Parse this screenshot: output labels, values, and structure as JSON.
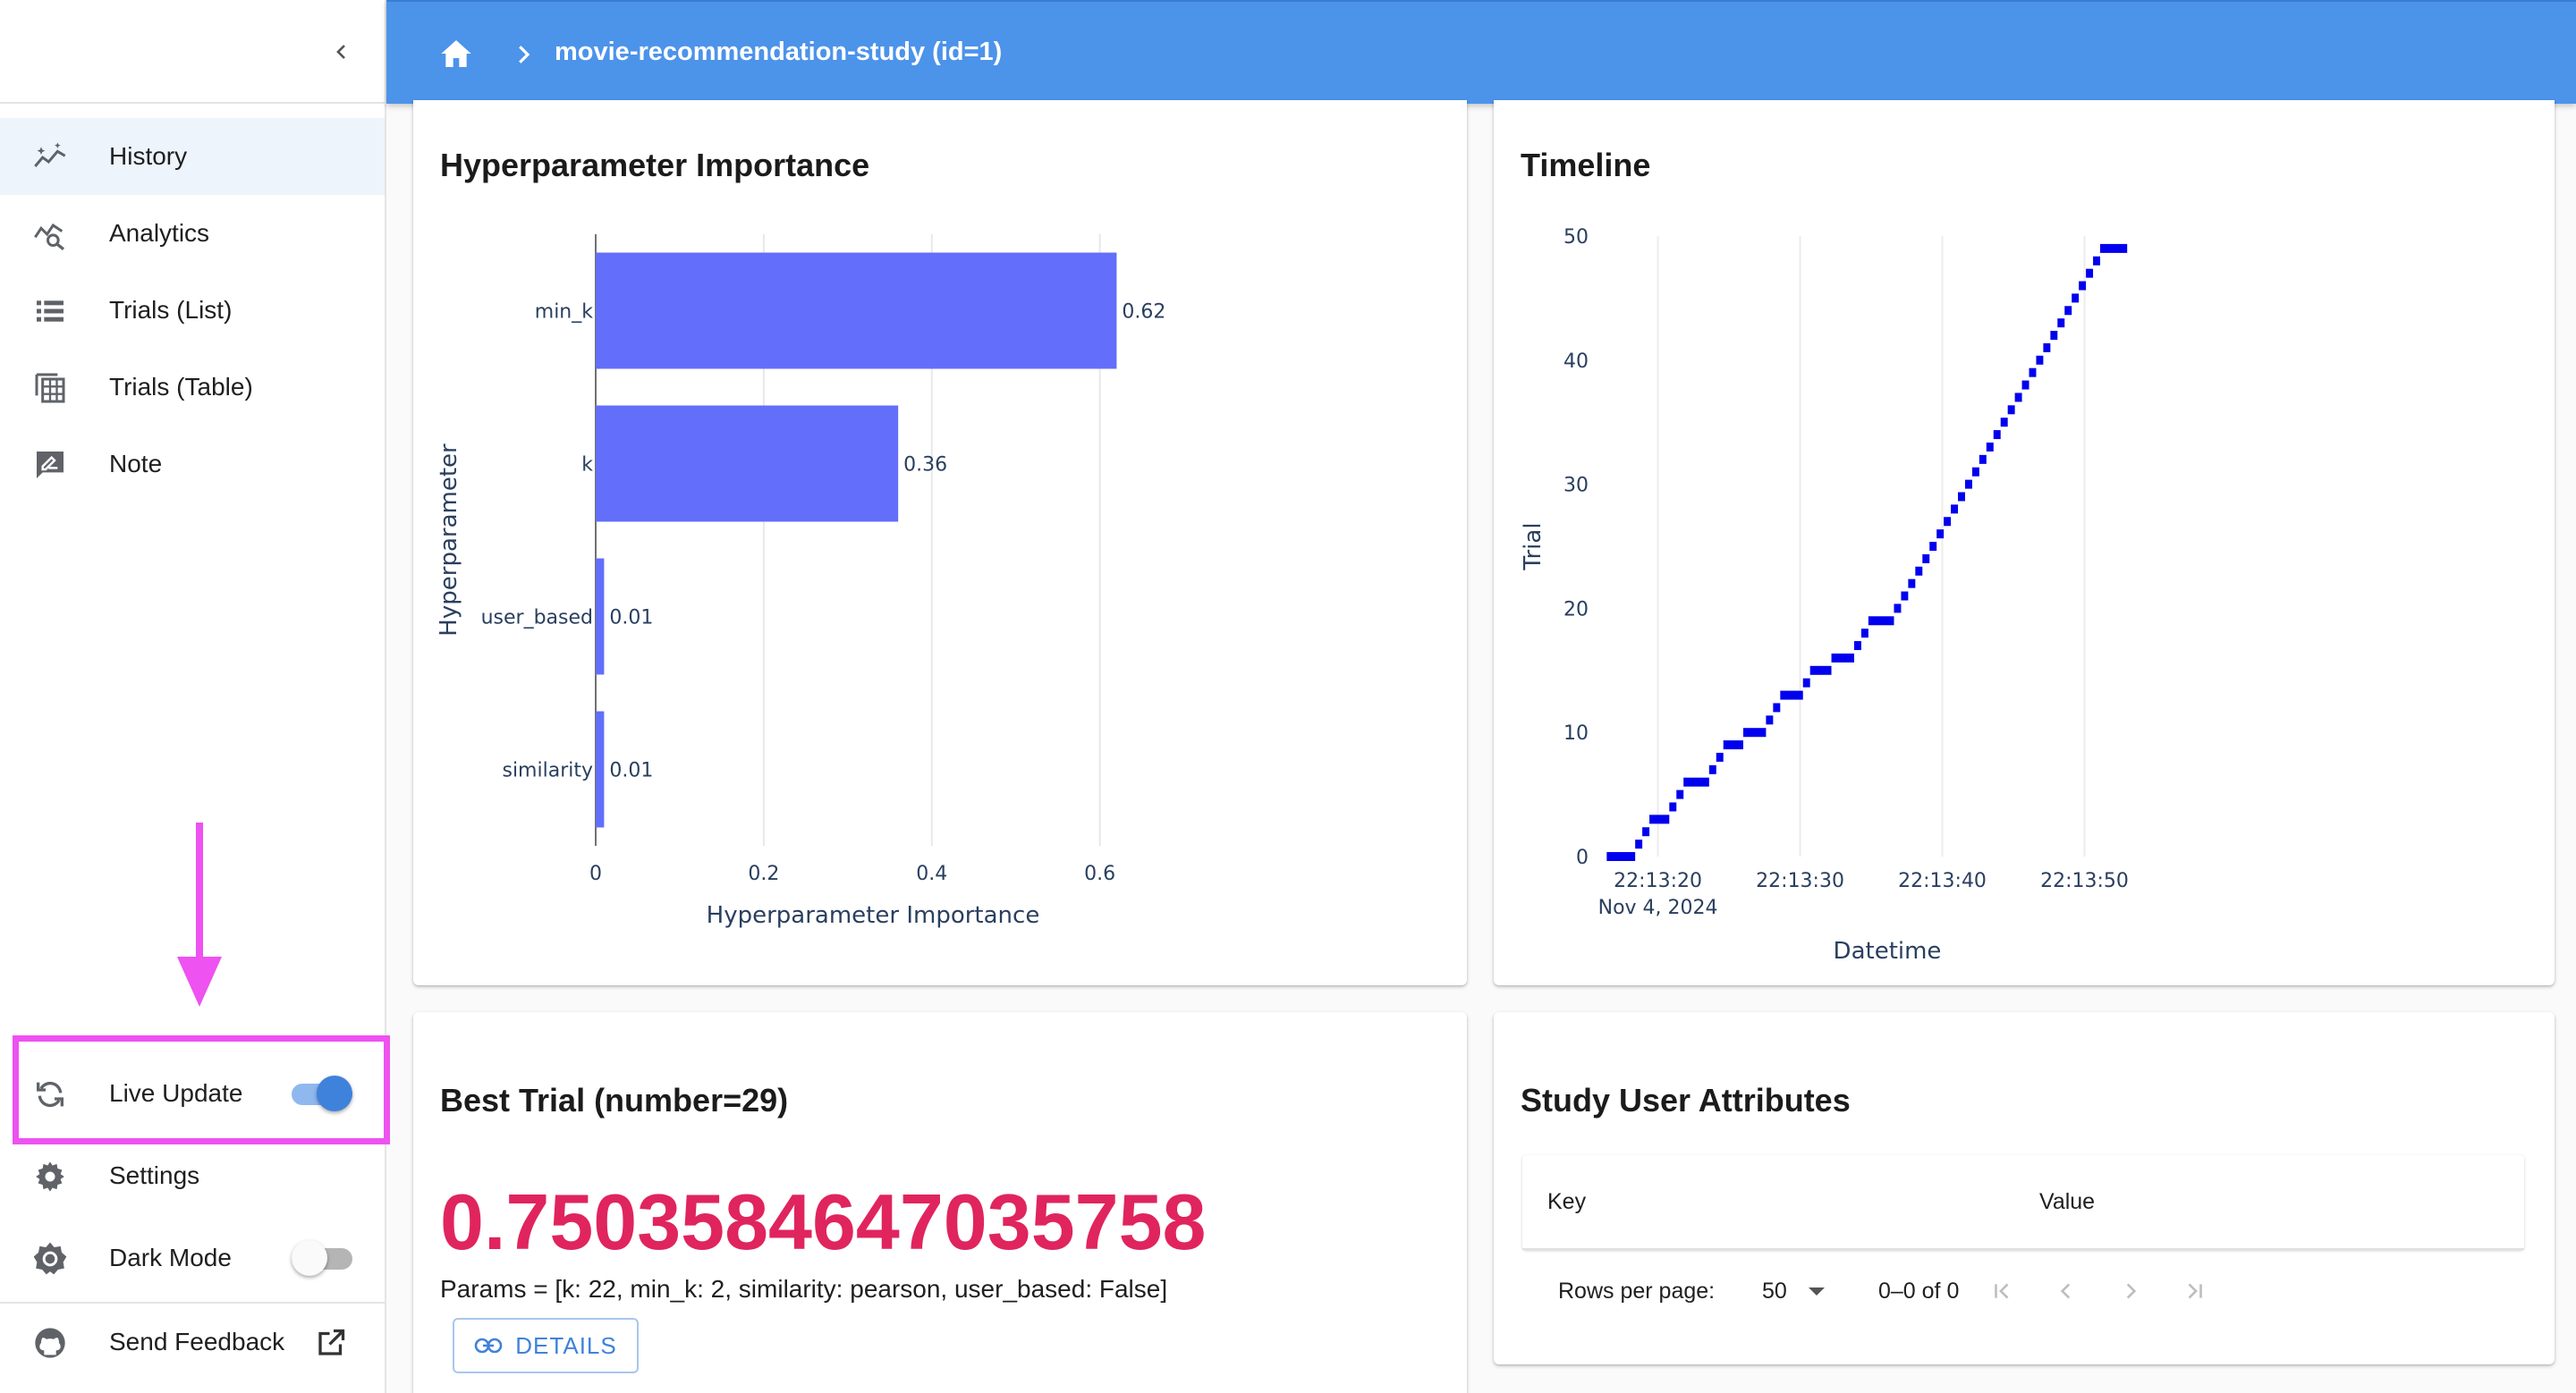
{
  "sidebar": {
    "nav": [
      {
        "label": "History",
        "icon": "history-chart-icon",
        "active": true
      },
      {
        "label": "Analytics",
        "icon": "analytics-icon",
        "active": false
      },
      {
        "label": "Trials (List)",
        "icon": "list-icon",
        "active": false
      },
      {
        "label": "Trials (Table)",
        "icon": "table-icon",
        "active": false
      },
      {
        "label": "Note",
        "icon": "note-icon",
        "active": false
      }
    ],
    "live_update": {
      "label": "Live Update",
      "enabled": true
    },
    "settings": {
      "label": "Settings"
    },
    "dark_mode": {
      "label": "Dark Mode",
      "enabled": false
    },
    "feedback": {
      "label": "Send Feedback"
    }
  },
  "header": {
    "breadcrumb": "movie-recommendation-study (id=1)"
  },
  "colors": {
    "header": "#4c93ea",
    "accent": "#3f82dc",
    "bar": "#636efa",
    "timeline_marker": "#0000ee",
    "best_value": "#e0245e",
    "annotation": "#ee52f0"
  },
  "importance_card": {
    "title": "Hyperparameter Importance"
  },
  "timeline_card": {
    "title": "Timeline"
  },
  "best_trial": {
    "title": "Best Trial (number=29)",
    "value": "0.7503584647035758",
    "params": "Params = [k: 22, min_k: 2, similarity: pearson, user_based: False]",
    "details_label": "DETAILS"
  },
  "user_attrs": {
    "title": "Study User Attributes",
    "key_header": "Key",
    "value_header": "Value",
    "rows_per_page_label": "Rows per page:",
    "rows_per_page_value": "50",
    "range_text": "0–0 of 0"
  },
  "chart_data": [
    {
      "type": "bar",
      "orientation": "horizontal",
      "categories": [
        "min_k",
        "k",
        "user_based",
        "similarity"
      ],
      "values": [
        0.62,
        0.36,
        0.01,
        0.01
      ],
      "data_labels": [
        "0.62",
        "0.36",
        "0.01",
        "0.01"
      ],
      "xlabel": "Hyperparameter Importance",
      "ylabel": "Hyperparameter",
      "xlim": [
        0,
        0.66
      ],
      "xticks": [
        "0",
        "0.2",
        "0.4",
        "0.6"
      ],
      "grid": true
    },
    {
      "type": "timeline",
      "xlabel": "Datetime",
      "ylabel": "Trial",
      "xticks": [
        "22:13:20",
        "22:13:30",
        "22:13:40",
        "22:13:50"
      ],
      "xtick_sublabel": "Nov 4, 2024",
      "yticks": [
        "0",
        "10",
        "20",
        "30",
        "40",
        "50"
      ],
      "xlim": [
        "22:13:16",
        "22:13:55"
      ],
      "ylim": [
        0,
        50
      ],
      "trials": [
        {
          "trial": 0,
          "start": "22:13:16.4",
          "end": "22:13:18.4"
        },
        {
          "trial": 1,
          "start": "22:13:18.4",
          "end": "22:13:18.9"
        },
        {
          "trial": 2,
          "start": "22:13:18.9",
          "end": "22:13:19.4"
        },
        {
          "trial": 3,
          "start": "22:13:19.4",
          "end": "22:13:20.8"
        },
        {
          "trial": 4,
          "start": "22:13:20.8",
          "end": "22:13:21.3"
        },
        {
          "trial": 5,
          "start": "22:13:21.3",
          "end": "22:13:21.8"
        },
        {
          "trial": 6,
          "start": "22:13:21.8",
          "end": "22:13:23.6"
        },
        {
          "trial": 7,
          "start": "22:13:23.6",
          "end": "22:13:24.1"
        },
        {
          "trial": 8,
          "start": "22:13:24.1",
          "end": "22:13:24.6"
        },
        {
          "trial": 9,
          "start": "22:13:24.6",
          "end": "22:13:26.0"
        },
        {
          "trial": 10,
          "start": "22:13:26.0",
          "end": "22:13:27.6"
        },
        {
          "trial": 11,
          "start": "22:13:27.6",
          "end": "22:13:28.1"
        },
        {
          "trial": 12,
          "start": "22:13:28.1",
          "end": "22:13:28.6"
        },
        {
          "trial": 13,
          "start": "22:13:28.6",
          "end": "22:13:30.2"
        },
        {
          "trial": 14,
          "start": "22:13:30.2",
          "end": "22:13:30.7"
        },
        {
          "trial": 15,
          "start": "22:13:30.7",
          "end": "22:13:32.2"
        },
        {
          "trial": 16,
          "start": "22:13:32.2",
          "end": "22:13:33.8"
        },
        {
          "trial": 17,
          "start": "22:13:33.8",
          "end": "22:13:34.3"
        },
        {
          "trial": 18,
          "start": "22:13:34.3",
          "end": "22:13:34.8"
        },
        {
          "trial": 19,
          "start": "22:13:34.8",
          "end": "22:13:36.6"
        },
        {
          "trial": 20,
          "start": "22:13:36.6",
          "end": "22:13:37.1"
        },
        {
          "trial": 21,
          "start": "22:13:37.1",
          "end": "22:13:37.6"
        },
        {
          "trial": 22,
          "start": "22:13:37.6",
          "end": "22:13:38.1"
        },
        {
          "trial": 23,
          "start": "22:13:38.1",
          "end": "22:13:38.6"
        },
        {
          "trial": 24,
          "start": "22:13:38.6",
          "end": "22:13:39.1"
        },
        {
          "trial": 25,
          "start": "22:13:39.1",
          "end": "22:13:39.6"
        },
        {
          "trial": 26,
          "start": "22:13:39.6",
          "end": "22:13:40.1"
        },
        {
          "trial": 27,
          "start": "22:13:40.1",
          "end": "22:13:40.6"
        },
        {
          "trial": 28,
          "start": "22:13:40.6",
          "end": "22:13:41.1"
        },
        {
          "trial": 29,
          "start": "22:13:41.1",
          "end": "22:13:41.6"
        },
        {
          "trial": 30,
          "start": "22:13:41.6",
          "end": "22:13:42.1"
        },
        {
          "trial": 31,
          "start": "22:13:42.1",
          "end": "22:13:42.6"
        },
        {
          "trial": 32,
          "start": "22:13:42.6",
          "end": "22:13:43.1"
        },
        {
          "trial": 33,
          "start": "22:13:43.1",
          "end": "22:13:43.6"
        },
        {
          "trial": 34,
          "start": "22:13:43.6",
          "end": "22:13:44.1"
        },
        {
          "trial": 35,
          "start": "22:13:44.1",
          "end": "22:13:44.6"
        },
        {
          "trial": 36,
          "start": "22:13:44.6",
          "end": "22:13:45.1"
        },
        {
          "trial": 37,
          "start": "22:13:45.1",
          "end": "22:13:45.6"
        },
        {
          "trial": 38,
          "start": "22:13:45.6",
          "end": "22:13:46.1"
        },
        {
          "trial": 39,
          "start": "22:13:46.1",
          "end": "22:13:46.6"
        },
        {
          "trial": 40,
          "start": "22:13:46.6",
          "end": "22:13:47.1"
        },
        {
          "trial": 41,
          "start": "22:13:47.1",
          "end": "22:13:47.6"
        },
        {
          "trial": 42,
          "start": "22:13:47.6",
          "end": "22:13:48.1"
        },
        {
          "trial": 43,
          "start": "22:13:48.1",
          "end": "22:13:48.6"
        },
        {
          "trial": 44,
          "start": "22:13:48.6",
          "end": "22:13:49.1"
        },
        {
          "trial": 45,
          "start": "22:13:49.1",
          "end": "22:13:49.6"
        },
        {
          "trial": 46,
          "start": "22:13:49.6",
          "end": "22:13:50.1"
        },
        {
          "trial": 47,
          "start": "22:13:50.1",
          "end": "22:13:50.6"
        },
        {
          "trial": 48,
          "start": "22:13:50.6",
          "end": "22:13:51.1"
        },
        {
          "trial": 49,
          "start": "22:13:51.1",
          "end": "22:13:53.0"
        }
      ]
    }
  ]
}
